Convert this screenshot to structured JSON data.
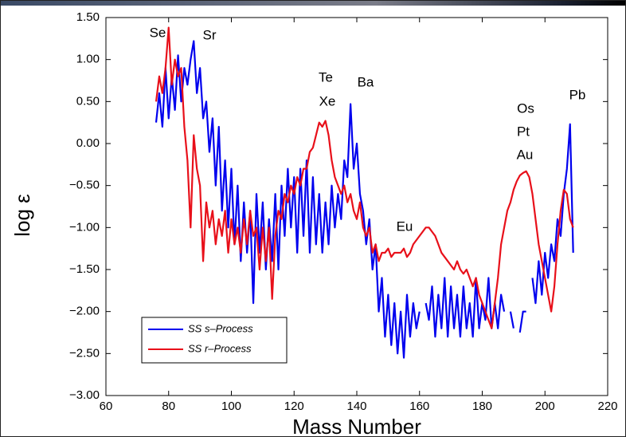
{
  "chart_data": {
    "type": "line",
    "x_label": "Mass Number",
    "y_label": "log ε",
    "x": [
      76,
      77,
      78,
      79,
      80,
      81,
      82,
      83,
      84,
      85,
      86,
      87,
      88,
      89,
      90,
      91,
      92,
      93,
      94,
      95,
      96,
      97,
      98,
      99,
      100,
      101,
      102,
      103,
      104,
      105,
      106,
      107,
      108,
      109,
      110,
      111,
      112,
      113,
      114,
      115,
      116,
      117,
      118,
      119,
      120,
      121,
      122,
      123,
      124,
      125,
      126,
      127,
      128,
      129,
      130,
      131,
      132,
      133,
      134,
      135,
      136,
      137,
      138,
      139,
      140,
      141,
      142,
      143,
      144,
      145,
      146,
      147,
      148,
      149,
      150,
      151,
      152,
      153,
      154,
      155,
      156,
      157,
      158,
      159,
      160,
      161,
      162,
      163,
      164,
      165,
      166,
      167,
      168,
      169,
      170,
      171,
      172,
      173,
      174,
      175,
      176,
      177,
      178,
      179,
      180,
      181,
      182,
      183,
      184,
      185,
      186,
      187,
      188,
      189,
      190,
      191,
      192,
      193,
      194,
      195,
      196,
      197,
      198,
      199,
      200,
      201,
      202,
      203,
      204,
      205,
      206,
      207,
      208,
      209
    ],
    "series": [
      {
        "name": "SS s–Process",
        "color": "#0000ee",
        "values": [
          0.25,
          0.6,
          0.2,
          0.9,
          0.3,
          0.8,
          0.4,
          1.05,
          0.5,
          0.9,
          0.7,
          1.0,
          1.22,
          0.6,
          0.9,
          0.3,
          0.5,
          -0.1,
          0.3,
          -0.5,
          0.2,
          -0.8,
          -0.2,
          -1.0,
          -0.3,
          -1.2,
          -0.5,
          -1.4,
          -0.7,
          -1.3,
          -0.8,
          -1.9,
          -0.6,
          -1.3,
          -0.7,
          -1.5,
          -0.9,
          -1.4,
          -0.6,
          -1.5,
          -0.5,
          -1.1,
          -0.3,
          -1.0,
          -0.4,
          -1.3,
          -0.3,
          -1.1,
          -0.2,
          -1.3,
          -0.4,
          -1.2,
          -0.6,
          -1.3,
          -0.7,
          -1.2,
          -0.5,
          -1.0,
          -0.6,
          -0.9,
          -0.2,
          -0.4,
          0.47,
          -0.3,
          0.0,
          -0.6,
          -0.8,
          -1.2,
          -0.9,
          -1.5,
          -1.2,
          -2.0,
          -1.6,
          -2.3,
          -1.8,
          -2.4,
          -1.9,
          -2.5,
          -2.0,
          -2.55,
          -1.8,
          -2.3,
          -1.9,
          -2.2,
          -2.0,
          null,
          -1.9,
          -2.1,
          -1.7,
          -2.3,
          -1.8,
          -2.2,
          -1.6,
          -2.3,
          -1.7,
          -2.2,
          -1.8,
          -2.3,
          -1.7,
          -2.2,
          -1.9,
          -2.3,
          -1.6,
          -2.2,
          -1.9,
          -2.1,
          -1.6,
          -2.2,
          -1.9,
          -2.2,
          -1.8,
          -2.0,
          null,
          -2.0,
          -2.2,
          null,
          -2.25,
          -2.0,
          -2.0,
          null,
          -1.6,
          -1.9,
          -1.4,
          -1.8,
          -1.3,
          -1.6,
          -1.2,
          -1.4,
          -0.9,
          -1.1,
          -0.6,
          -0.3,
          0.23,
          -1.3
        ]
      },
      {
        "name": "SS r–Process",
        "color": "#e8101a",
        "values": [
          0.5,
          0.8,
          0.6,
          0.9,
          1.38,
          0.7,
          1.0,
          0.8,
          0.9,
          0.2,
          -0.2,
          -1.0,
          0.1,
          -0.3,
          -0.5,
          -1.4,
          -0.7,
          -1.0,
          -0.8,
          -1.2,
          -0.9,
          -1.1,
          -0.8,
          -1.3,
          -0.9,
          -1.2,
          -1.0,
          -1.3,
          -0.9,
          -1.2,
          -0.8,
          -1.1,
          -1.0,
          -1.5,
          -1.0,
          -1.4,
          -1.0,
          -1.85,
          -1.1,
          -0.8,
          -0.9,
          -0.6,
          -0.7,
          -0.5,
          -0.6,
          -0.4,
          -0.5,
          -0.3,
          -0.3,
          -0.1,
          -0.05,
          0.1,
          0.25,
          0.2,
          0.27,
          0.1,
          -0.2,
          -0.4,
          -0.5,
          -0.6,
          -0.5,
          -0.7,
          -0.6,
          -0.8,
          -0.9,
          -0.7,
          -1.0,
          -1.1,
          -1.0,
          -1.3,
          -1.2,
          -1.4,
          -1.3,
          -1.3,
          -1.25,
          -1.35,
          -1.3,
          -1.3,
          -1.3,
          -1.25,
          -1.35,
          -1.3,
          -1.2,
          -1.15,
          -1.1,
          -1.05,
          -1.0,
          -1.0,
          -1.05,
          -1.1,
          -1.2,
          -1.3,
          -1.35,
          -1.4,
          -1.45,
          -1.5,
          -1.4,
          -1.5,
          -1.55,
          -1.5,
          -1.6,
          -1.7,
          -1.6,
          -1.8,
          -1.9,
          -2.0,
          -2.1,
          -2.2,
          -1.9,
          -1.6,
          -1.2,
          -1.0,
          -0.8,
          -0.7,
          -0.55,
          -0.45,
          -0.38,
          -0.35,
          -0.33,
          -0.4,
          -0.6,
          -0.9,
          -1.2,
          -1.4,
          -1.6,
          -1.8,
          -2.0,
          -1.7,
          -1.2,
          -0.8,
          -0.55,
          -0.6,
          -0.9,
          -1.0
        ]
      }
    ],
    "xlim": [
      60,
      220
    ],
    "xticks": [
      60,
      80,
      100,
      120,
      140,
      160,
      180,
      200,
      220
    ],
    "ylim": [
      -3,
      1.5
    ],
    "yticks": [
      {
        "value": 1.5,
        "label": "1.50"
      },
      {
        "value": 1,
        "label": "1.00"
      },
      {
        "value": 0.5,
        "label": "0.50"
      },
      {
        "value": 0,
        "label": "0.00"
      },
      {
        "value": -0.5,
        "label": "−0.50"
      },
      {
        "value": -1,
        "label": "−1.00"
      },
      {
        "value": -1.5,
        "label": "−1.50"
      },
      {
        "value": -2,
        "label": "−2.00"
      },
      {
        "value": -2.5,
        "label": "−2.50"
      },
      {
        "value": -3,
        "label": "−3.00"
      }
    ],
    "annotations": [
      "Se",
      "Sr",
      "Te",
      "Xe",
      "Ba",
      "Eu",
      "Os",
      "Pt",
      "Au",
      "Pb"
    ],
    "legend": "lower left"
  }
}
